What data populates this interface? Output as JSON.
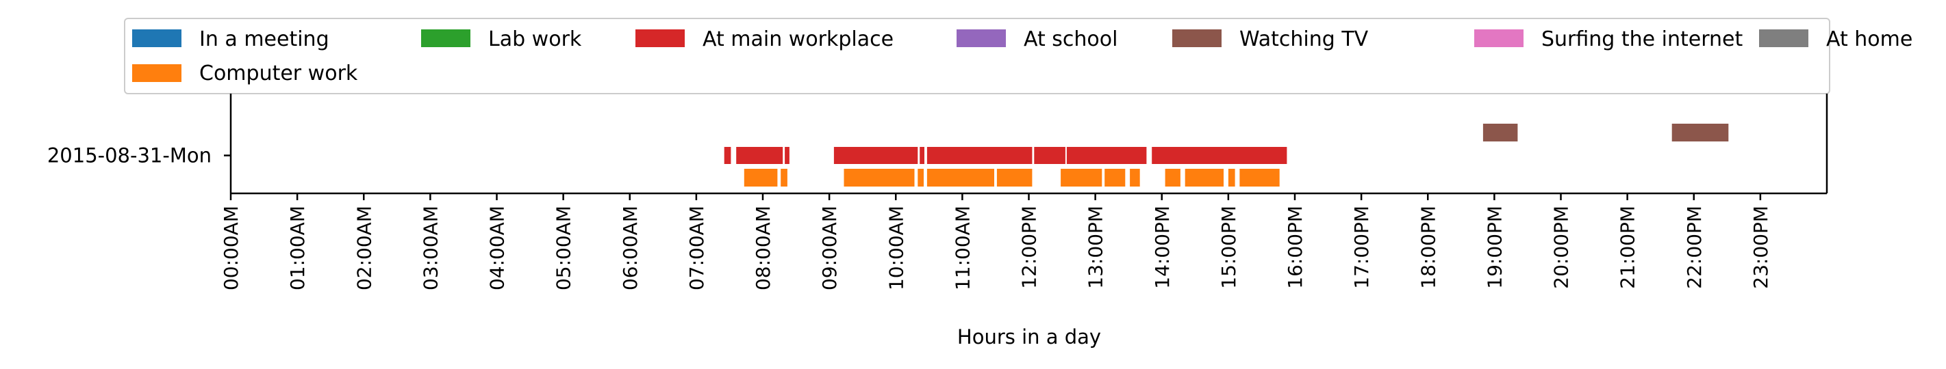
{
  "chart_data": {
    "type": "timeline",
    "xlabel": "Hours in a day",
    "xlim": [
      0,
      24
    ],
    "grid": false,
    "legend_position": "top",
    "categories": [
      "2015-08-31-Mon"
    ],
    "x_ticks": [
      "00:00AM",
      "01:00AM",
      "02:00AM",
      "03:00AM",
      "04:00AM",
      "05:00AM",
      "06:00AM",
      "07:00AM",
      "08:00AM",
      "09:00AM",
      "10:00AM",
      "11:00AM",
      "12:00PM",
      "13:00PM",
      "14:00PM",
      "15:00PM",
      "16:00PM",
      "17:00PM",
      "18:00PM",
      "19:00PM",
      "20:00PM",
      "21:00PM",
      "22:00PM",
      "23:00PM"
    ],
    "legend_row1": [
      {
        "name": "In a meeting",
        "color": "#1f77b4"
      },
      {
        "name": "Lab work",
        "color": "#2ca02c"
      },
      {
        "name": "At main workplace",
        "color": "#d62728"
      },
      {
        "name": "At school",
        "color": "#9467bd"
      },
      {
        "name": "Watching TV",
        "color": "#8c564b"
      },
      {
        "name": "Surfing the internet",
        "color": "#e377c2"
      },
      {
        "name": "At home",
        "color": "#7f7f7f"
      }
    ],
    "legend_row2": [
      {
        "name": "Computer work",
        "color": "#ff7f0e"
      }
    ],
    "series": [
      {
        "name": "Watching TV",
        "color": "#8c564b",
        "lane": "top",
        "intervals": [
          [
            18.83,
            19.35
          ],
          [
            21.67,
            22.52
          ]
        ]
      },
      {
        "name": "At main workplace",
        "color": "#d62728",
        "lane": "mid",
        "intervals": [
          [
            7.42,
            7.52
          ],
          [
            7.6,
            8.3
          ],
          [
            8.33,
            8.4
          ],
          [
            9.07,
            10.33
          ],
          [
            10.36,
            10.43
          ],
          [
            10.47,
            12.05
          ],
          [
            12.08,
            12.55
          ],
          [
            12.57,
            13.77
          ],
          [
            13.85,
            15.88
          ]
        ]
      },
      {
        "name": "Computer work",
        "color": "#ff7f0e",
        "lane": "low",
        "intervals": [
          [
            7.72,
            8.22
          ],
          [
            8.27,
            8.37
          ],
          [
            9.22,
            10.28
          ],
          [
            10.33,
            10.42
          ],
          [
            10.47,
            11.48
          ],
          [
            11.52,
            12.05
          ],
          [
            12.48,
            13.1
          ],
          [
            13.14,
            13.45
          ],
          [
            13.52,
            13.67
          ],
          [
            14.05,
            14.28
          ],
          [
            14.35,
            14.93
          ],
          [
            15.0,
            15.1
          ],
          [
            15.17,
            15.77
          ]
        ]
      }
    ]
  }
}
